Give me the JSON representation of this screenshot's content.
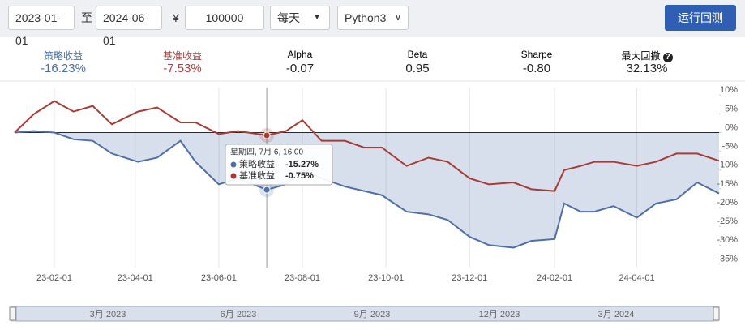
{
  "toolbar": {
    "start_date": "2023-01-01",
    "to": "至",
    "end_date": "2024-06-01",
    "currency": "¥",
    "capital": "100000",
    "frequency": "每天",
    "language": "Python3",
    "run_button": "运行回测"
  },
  "stats": [
    {
      "label": "策略收益",
      "value": "-16.23%"
    },
    {
      "label": "基准收益",
      "value": "-7.53%"
    },
    {
      "label": "Alpha",
      "value": "-0.07"
    },
    {
      "label": "Beta",
      "value": "0.95"
    },
    {
      "label": "Sharpe",
      "value": "-0.80"
    },
    {
      "label": "最大回撤",
      "value": "32.13%"
    }
  ],
  "chart_data": {
    "type": "line",
    "x": [
      "2023-01-03",
      "2023-01-17",
      "2023-02-01",
      "2023-02-15",
      "2023-03-01",
      "2023-03-15",
      "2023-04-03",
      "2023-04-17",
      "2023-05-04",
      "2023-05-15",
      "2023-06-01",
      "2023-06-15",
      "2023-07-06",
      "2023-07-20",
      "2023-08-01",
      "2023-08-15",
      "2023-09-01",
      "2023-09-15",
      "2023-09-28",
      "2023-10-16",
      "2023-11-01",
      "2023-11-15",
      "2023-12-01",
      "2023-12-15",
      "2024-01-02",
      "2024-01-15",
      "2024-02-01",
      "2024-02-08",
      "2024-02-20",
      "2024-03-01",
      "2024-03-15",
      "2024-04-01",
      "2024-04-15",
      "2024-04-30",
      "2024-05-15",
      "2024-05-31"
    ],
    "series": [
      {
        "color": "#4f6fa8",
        "area": true,
        "values": [
          0,
          0.4,
          0,
          -1.8,
          -2.2,
          -5.6,
          -7.8,
          -6.7,
          -2.2,
          -7.8,
          -13.8,
          -12.2,
          -15.27,
          -13.8,
          -10,
          -12.2,
          -14.4,
          -15.6,
          -16.7,
          -21.1,
          -21.8,
          -23.3,
          -27.8,
          -30,
          -30.7,
          -28.9,
          -28.4,
          -18.9,
          -21.1,
          -21.1,
          -19.6,
          -22.7,
          -18.9,
          -17.8,
          -13.3,
          -16.23
        ]
      },
      {
        "color": "#a93b34",
        "values": [
          0,
          4.9,
          8.4,
          5.6,
          7.1,
          2.2,
          5.6,
          6.7,
          2.7,
          2.7,
          -0.4,
          0.4,
          -0.75,
          0.4,
          3.3,
          -2.2,
          -2.2,
          -4,
          -4,
          -8.9,
          -6.7,
          -7.8,
          -12.2,
          -13.8,
          -13.3,
          -15.1,
          -15.6,
          -10,
          -8.9,
          -7.8,
          -7.8,
          -8.9,
          -7.8,
          -5.6,
          -5.6,
          -7.53
        ]
      }
    ],
    "xlim": [
      "2023-01-03",
      "2024-05-31"
    ],
    "xticks": [
      {
        "value": "2023-02-01",
        "label": "23-02-01"
      },
      {
        "value": "2023-04-01",
        "label": "23-04-01"
      },
      {
        "value": "2023-06-01",
        "label": "23-06-01"
      },
      {
        "value": "2023-08-01",
        "label": "23-08-01"
      },
      {
        "value": "2023-10-01",
        "label": "23-10-01"
      },
      {
        "value": "2023-12-01",
        "label": "23-12-01"
      },
      {
        "value": "2024-02-01",
        "label": "24-02-01"
      },
      {
        "value": "2024-04-01",
        "label": "24-04-01"
      }
    ],
    "ylim": [
      -36,
      12
    ],
    "yticks": [
      {
        "value": 10,
        "label": "10%"
      },
      {
        "value": 5,
        "label": "5%"
      },
      {
        "value": 0,
        "label": "0%"
      },
      {
        "value": -5,
        "label": "-5%"
      },
      {
        "value": -10,
        "label": "-10%"
      },
      {
        "value": -15,
        "label": "-15%"
      },
      {
        "value": -20,
        "label": "-20%"
      },
      {
        "value": -25,
        "label": "-25%"
      },
      {
        "value": -30,
        "label": "-30%"
      },
      {
        "value": -35,
        "label": "-35%"
      }
    ],
    "grid": "x",
    "tooltip": {
      "date": "星期四, 7月 6, 16:00",
      "rows": [
        {
          "label": "策略收益:",
          "value": "-15.27%"
        },
        {
          "label": "基准收益:",
          "value": "-0.75%"
        }
      ]
    },
    "navigator": [
      "3月 2023",
      "6月 2023",
      "9月 2023",
      "12月 2023",
      "3月 2024"
    ]
  }
}
